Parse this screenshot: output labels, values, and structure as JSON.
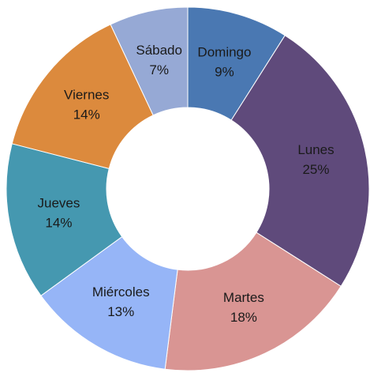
{
  "chart_data": {
    "type": "donut",
    "categories": [
      "Domingo",
      "Lunes",
      "Martes",
      "Miércoles",
      "Jueves",
      "Viernes",
      "Sábado"
    ],
    "values": [
      9,
      25,
      18,
      13,
      14,
      14,
      7
    ],
    "value_labels": [
      "9%",
      "25%",
      "18%",
      "13%",
      "14%",
      "14%",
      "7%"
    ],
    "colors": [
      "#4a78b2",
      "#5f4a7b",
      "#d99593",
      "#96b5f7",
      "#4598b0",
      "#dc8a3d",
      "#96a9d5"
    ]
  }
}
